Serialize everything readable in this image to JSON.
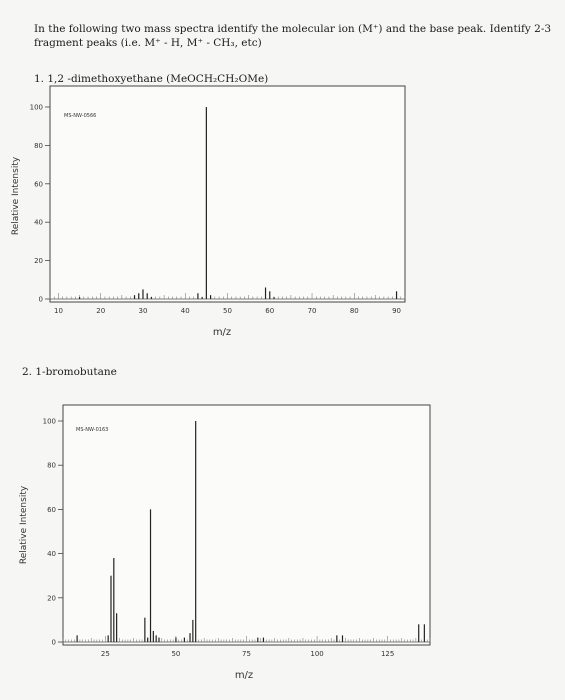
{
  "question": {
    "prompt": "In the following two mass spectra identify the molecular ion (M⁺) and the base peak. Identify 2-3 fragment peaks (i.e. M⁺ - H, M⁺ - CH₃, etc)",
    "part1": "1. 1,2 -dimethoxyethane (MeOCH₂CH₂OMe)",
    "part2": "2. 1-bromobutane"
  },
  "chart_data": [
    {
      "type": "bar",
      "spectrum_code": "MS-NW-0566",
      "xlabel": "m/z",
      "ylabel": "Relative Intensity",
      "xlim": [
        8,
        92
      ],
      "ylim": [
        0,
        100
      ],
      "xticks": [
        10,
        20,
        30,
        40,
        50,
        60,
        70,
        80,
        90
      ],
      "yticks": [
        0,
        20,
        40,
        60,
        80,
        100
      ],
      "x": [
        15,
        28,
        29,
        30,
        31,
        32,
        43,
        44,
        45,
        46,
        59,
        60,
        61,
        90
      ],
      "values": [
        1,
        2,
        3,
        5,
        3,
        1,
        3,
        1,
        100,
        2,
        6,
        4,
        1,
        4
      ]
    },
    {
      "type": "bar",
      "spectrum_code": "MS-NW-0163",
      "xlabel": "m/z",
      "ylabel": "Relative Intensity",
      "xlim": [
        10,
        140
      ],
      "ylim": [
        0,
        100
      ],
      "xticks": [
        25,
        50,
        75,
        100,
        125
      ],
      "yticks": [
        0,
        20,
        40,
        60,
        80,
        100
      ],
      "x": [
        15,
        26,
        27,
        28,
        29,
        39,
        40,
        41,
        42,
        43,
        44,
        50,
        53,
        55,
        56,
        57,
        79,
        81,
        107,
        109,
        136,
        138
      ],
      "values": [
        3,
        3,
        30,
        38,
        13,
        11,
        2,
        60,
        5,
        3,
        2,
        2,
        2,
        4,
        10,
        100,
        2,
        2,
        3,
        3,
        8,
        8
      ]
    }
  ]
}
